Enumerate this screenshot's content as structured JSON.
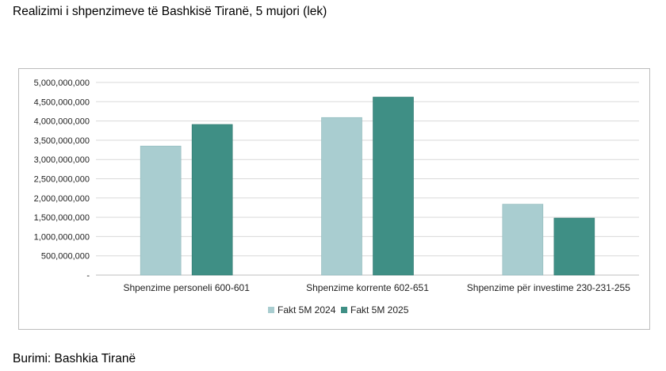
{
  "title": "Realizimi i shpenzimeve të Bashkisë Tiranë, 5 mujori (lek)",
  "source": "Burimi: Bashkia Tiranë",
  "colors": {
    "series_2024": "#a9cdd0",
    "series_2025": "#3f8f85",
    "grid": "#d9d9d9",
    "axis": "#bfbfbf",
    "text": "#222222"
  },
  "chart_data": {
    "type": "bar",
    "title": "",
    "xlabel": "",
    "ylabel": "",
    "ylim": [
      0,
      5000000000
    ],
    "y_ticks": [
      0,
      500000000,
      1000000000,
      1500000000,
      2000000000,
      2500000000,
      3000000000,
      3500000000,
      4000000000,
      4500000000,
      5000000000
    ],
    "y_tick_labels": [
      "-",
      "500,000,000",
      "1,000,000,000",
      "1,500,000,000",
      "2,000,000,000",
      "2,500,000,000",
      "3,000,000,000",
      "3,500,000,000",
      "4,000,000,000",
      "4,500,000,000",
      "5,000,000,000"
    ],
    "categories": [
      "Shpenzime personeli 600-601",
      "Shpenzime korrente 602-651",
      "Shpenzime për investime 230-231-255"
    ],
    "series": [
      {
        "name": "Fakt 5M 2024",
        "values": [
          3350000000,
          4090000000,
          1840000000
        ]
      },
      {
        "name": "Fakt 5M 2025",
        "values": [
          3910000000,
          4620000000,
          1480000000
        ]
      }
    ],
    "grid": true,
    "legend": "bottom"
  }
}
